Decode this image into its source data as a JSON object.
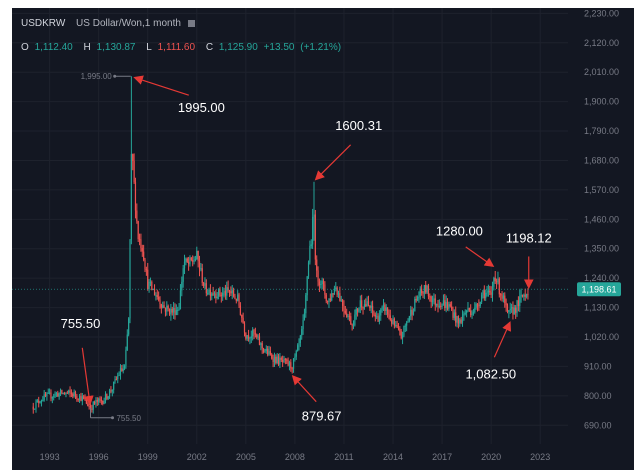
{
  "header": {
    "symbol": "USDKRW",
    "description": "US Dollar/Won,1 month",
    "open_label": "O",
    "open": "1,112.40",
    "high_label": "H",
    "high": "1,130.87",
    "low_label": "L",
    "low": "1,111.60",
    "close_label": "C",
    "close": "1,125.90",
    "change": "+13.50",
    "change_pct": "(+1.21%)"
  },
  "colors": {
    "background": "#131722",
    "grid": "#1e222d",
    "axis_text": "#787b86",
    "up": "#26a69a",
    "down": "#ef5350",
    "annotation_text": "#ffffff",
    "arrow": "#e53935"
  },
  "chart_data": {
    "type": "candlestick",
    "interval": "1 month",
    "x_ticks": [
      "1993",
      "1996",
      "1999",
      "2002",
      "2005",
      "2008",
      "2011",
      "2014",
      "2017",
      "2020",
      "2023"
    ],
    "y_ticks": [
      "690.00",
      "800.00",
      "910.00",
      "1,020.00",
      "1,130.00",
      "1,240.00",
      "1,350.00",
      "1,460.00",
      "1,570.00",
      "1,680.00",
      "1,790.00",
      "1,900.00",
      "2,010.00",
      "2,120.00",
      "2,230.00"
    ],
    "ylim": [
      620,
      2250
    ],
    "last_price": "1,198.61",
    "hi_marker": "1,995.00",
    "lo_marker": "755.50",
    "anchors": [
      [
        1992.0,
        760
      ],
      [
        1992.5,
        790
      ],
      [
        1993.0,
        800
      ],
      [
        1993.5,
        808
      ],
      [
        1994.0,
        810
      ],
      [
        1994.5,
        806
      ],
      [
        1995.0,
        790
      ],
      [
        1995.3,
        770
      ],
      [
        1995.5,
        756
      ],
      [
        1995.8,
        775
      ],
      [
        1996.3,
        785
      ],
      [
        1996.8,
        825
      ],
      [
        1997.3,
        890
      ],
      [
        1997.6,
        905
      ],
      [
        1997.85,
        1100
      ],
      [
        1997.96,
        1550
      ],
      [
        1998.0,
        1680
      ],
      [
        1998.05,
        1700
      ],
      [
        1998.15,
        1600
      ],
      [
        1998.4,
        1400
      ],
      [
        1998.7,
        1350
      ],
      [
        1999.0,
        1220
      ],
      [
        1999.5,
        1180
      ],
      [
        2000.0,
        1130
      ],
      [
        2000.5,
        1115
      ],
      [
        2000.9,
        1130
      ],
      [
        2001.2,
        1300
      ],
      [
        2001.5,
        1290
      ],
      [
        2002.0,
        1320
      ],
      [
        2002.5,
        1200
      ],
      [
        2003.0,
        1190
      ],
      [
        2003.5,
        1180
      ],
      [
        2004.0,
        1190
      ],
      [
        2004.5,
        1160
      ],
      [
        2005.0,
        1030
      ],
      [
        2005.5,
        1030
      ],
      [
        2006.0,
        980
      ],
      [
        2006.5,
        950
      ],
      [
        2007.0,
        930
      ],
      [
        2007.5,
        920
      ],
      [
        2007.8,
        910
      ],
      [
        2008.0,
        938
      ],
      [
        2008.3,
        1000
      ],
      [
        2008.6,
        1100
      ],
      [
        2008.75,
        1250
      ],
      [
        2008.9,
        1350
      ],
      [
        2009.0,
        1380
      ],
      [
        2009.15,
        1500
      ],
      [
        2009.3,
        1250
      ],
      [
        2009.6,
        1230
      ],
      [
        2010.0,
        1150
      ],
      [
        2010.5,
        1210
      ],
      [
        2011.0,
        1130
      ],
      [
        2011.5,
        1070
      ],
      [
        2012.0,
        1150
      ],
      [
        2012.5,
        1135
      ],
      [
        2013.0,
        1090
      ],
      [
        2013.5,
        1130
      ],
      [
        2014.0,
        1070
      ],
      [
        2014.5,
        1020
      ],
      [
        2015.0,
        1100
      ],
      [
        2015.5,
        1170
      ],
      [
        2016.0,
        1200
      ],
      [
        2016.5,
        1150
      ],
      [
        2017.0,
        1150
      ],
      [
        2017.5,
        1130
      ],
      [
        2018.0,
        1070
      ],
      [
        2018.5,
        1120
      ],
      [
        2019.0,
        1120
      ],
      [
        2019.5,
        1190
      ],
      [
        2020.0,
        1170
      ],
      [
        2020.2,
        1260
      ],
      [
        2020.5,
        1200
      ],
      [
        2020.8,
        1150
      ],
      [
        2021.0,
        1100
      ],
      [
        2021.5,
        1130
      ],
      [
        2022.0,
        1180
      ],
      [
        2022.3,
        1198.61
      ]
    ],
    "spikes": [
      {
        "x": 1997.96,
        "high": 1995.0,
        "low": 1450
      },
      {
        "x": 2009.15,
        "high": 1600.31,
        "low": 1380
      }
    ],
    "annotations": [
      {
        "label": "1995.00",
        "x": 1998.0,
        "y": 1995.0
      },
      {
        "label": "1600.31",
        "x": 2009.15,
        "y": 1600.31
      },
      {
        "label": "1280.00",
        "x": 2020.2,
        "y": 1280.0
      },
      {
        "label": "1198.12",
        "x": 2022.3,
        "y": 1198.12
      },
      {
        "label": "755.50",
        "x": 1995.5,
        "y": 755.5
      },
      {
        "label": "879.67",
        "x": 2007.8,
        "y": 879.67
      },
      {
        "label": "1,082.50",
        "x": 2021.2,
        "y": 1082.5
      }
    ]
  }
}
